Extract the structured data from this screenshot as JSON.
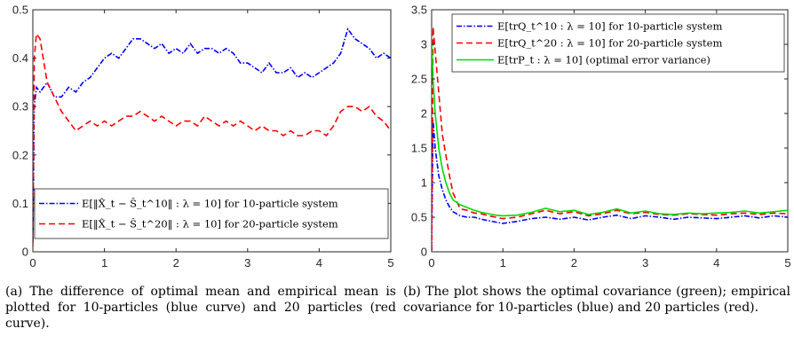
{
  "figure": {
    "caption_a": "(a) The difference of optimal mean and empirical mean is plotted for 10-particles (blue curve) and 20 particles (red curve).",
    "caption_b": "(b) The plot shows the optimal covariance (green); empirical covariance for 10-particles (blue) and 20 particles (red)."
  },
  "chart_data": [
    {
      "type": "line",
      "title": "",
      "xlabel": "",
      "ylabel": "",
      "xlim": [
        0,
        5
      ],
      "ylim": [
        0,
        0.5
      ],
      "xticks": [
        "0",
        "1",
        "2",
        "3",
        "4",
        "5"
      ],
      "yticks": [
        "0",
        "0.1",
        "0.2",
        "0.3",
        "0.4",
        "0.5"
      ],
      "grid": false,
      "legend_position": "bottom",
      "series": [
        {
          "name": "E[‖X̂_t − Ŝ_t^10‖ : λ = 10] for 10-particle system",
          "color": "#0000ff",
          "style": "dash-dot",
          "x": [
            0,
            0.02,
            0.05,
            0.1,
            0.2,
            0.3,
            0.4,
            0.5,
            0.6,
            0.7,
            0.8,
            0.9,
            1.0,
            1.1,
            1.2,
            1.3,
            1.4,
            1.5,
            1.6,
            1.7,
            1.8,
            1.9,
            2.0,
            2.1,
            2.2,
            2.3,
            2.4,
            2.5,
            2.6,
            2.7,
            2.8,
            2.9,
            3.0,
            3.1,
            3.2,
            3.3,
            3.4,
            3.5,
            3.6,
            3.7,
            3.8,
            3.9,
            4.0,
            4.1,
            4.2,
            4.3,
            4.4,
            4.5,
            4.6,
            4.7,
            4.8,
            4.9,
            5.0
          ],
          "y": [
            0.02,
            0.3,
            0.34,
            0.33,
            0.35,
            0.32,
            0.32,
            0.34,
            0.33,
            0.35,
            0.36,
            0.38,
            0.4,
            0.41,
            0.4,
            0.42,
            0.44,
            0.44,
            0.43,
            0.42,
            0.43,
            0.41,
            0.42,
            0.41,
            0.43,
            0.41,
            0.42,
            0.42,
            0.41,
            0.42,
            0.41,
            0.39,
            0.39,
            0.38,
            0.37,
            0.39,
            0.37,
            0.37,
            0.38,
            0.36,
            0.37,
            0.36,
            0.37,
            0.38,
            0.39,
            0.41,
            0.46,
            0.44,
            0.43,
            0.42,
            0.4,
            0.41,
            0.4
          ]
        },
        {
          "name": "E[‖X̂_t − Ŝ_t^20‖ : λ = 10] for 20-particle system",
          "color": "#ff0000",
          "style": "dashed",
          "x": [
            0,
            0.02,
            0.05,
            0.1,
            0.2,
            0.3,
            0.4,
            0.5,
            0.6,
            0.7,
            0.8,
            0.9,
            1.0,
            1.1,
            1.2,
            1.3,
            1.4,
            1.5,
            1.6,
            1.7,
            1.8,
            1.9,
            2.0,
            2.1,
            2.2,
            2.3,
            2.4,
            2.5,
            2.6,
            2.7,
            2.8,
            2.9,
            3.0,
            3.1,
            3.2,
            3.3,
            3.4,
            3.5,
            3.6,
            3.7,
            3.8,
            3.9,
            4.0,
            4.1,
            4.2,
            4.3,
            4.4,
            4.5,
            4.6,
            4.7,
            4.8,
            4.9,
            5.0
          ],
          "y": [
            0.01,
            0.4,
            0.45,
            0.44,
            0.35,
            0.32,
            0.29,
            0.27,
            0.25,
            0.26,
            0.27,
            0.26,
            0.27,
            0.26,
            0.27,
            0.28,
            0.28,
            0.29,
            0.28,
            0.27,
            0.28,
            0.27,
            0.26,
            0.27,
            0.27,
            0.26,
            0.28,
            0.27,
            0.26,
            0.27,
            0.26,
            0.27,
            0.26,
            0.25,
            0.26,
            0.25,
            0.25,
            0.24,
            0.25,
            0.24,
            0.24,
            0.25,
            0.25,
            0.24,
            0.26,
            0.29,
            0.3,
            0.3,
            0.29,
            0.3,
            0.28,
            0.27,
            0.25
          ]
        }
      ]
    },
    {
      "type": "line",
      "title": "",
      "xlabel": "",
      "ylabel": "",
      "xlim": [
        0,
        5
      ],
      "ylim": [
        0,
        3.5
      ],
      "xticks": [
        "0",
        "1",
        "2",
        "3",
        "4",
        "5"
      ],
      "yticks": [
        "0",
        "0.5",
        "1",
        "1.5",
        "2",
        "2.5",
        "3",
        "3.5"
      ],
      "grid": false,
      "legend_position": "top-right",
      "series": [
        {
          "name": "E[trQ_t^10 : λ = 10] for 10-particle system",
          "color": "#0000ff",
          "style": "dash-dot",
          "x": [
            0,
            0.02,
            0.05,
            0.1,
            0.15,
            0.2,
            0.25,
            0.3,
            0.4,
            0.5,
            0.6,
            0.7,
            0.8,
            0.9,
            1.0,
            1.2,
            1.4,
            1.6,
            1.8,
            2.0,
            2.2,
            2.4,
            2.6,
            2.8,
            3.0,
            3.2,
            3.4,
            3.6,
            3.8,
            4.0,
            4.2,
            4.4,
            4.6,
            4.8,
            5.0
          ],
          "y": [
            0.02,
            1.9,
            1.5,
            1.1,
            0.9,
            0.75,
            0.65,
            0.58,
            0.52,
            0.5,
            0.5,
            0.47,
            0.45,
            0.43,
            0.41,
            0.44,
            0.48,
            0.5,
            0.47,
            0.5,
            0.46,
            0.5,
            0.53,
            0.48,
            0.52,
            0.5,
            0.47,
            0.5,
            0.49,
            0.48,
            0.5,
            0.52,
            0.49,
            0.52,
            0.5
          ]
        },
        {
          "name": "E[trQ_t^20 : λ = 10] for 20-particle system",
          "color": "#ff0000",
          "style": "dashed",
          "x": [
            0,
            0.02,
            0.05,
            0.1,
            0.15,
            0.2,
            0.25,
            0.3,
            0.4,
            0.5,
            0.6,
            0.7,
            0.8,
            0.9,
            1.0,
            1.2,
            1.4,
            1.6,
            1.8,
            2.0,
            2.2,
            2.4,
            2.6,
            2.8,
            3.0,
            3.2,
            3.4,
            3.6,
            3.8,
            4.0,
            4.2,
            4.4,
            4.6,
            4.8,
            5.0
          ],
          "y": [
            0.02,
            3.25,
            2.9,
            2.3,
            1.7,
            1.4,
            1.1,
            0.85,
            0.62,
            0.6,
            0.56,
            0.55,
            0.52,
            0.5,
            0.48,
            0.5,
            0.55,
            0.6,
            0.55,
            0.58,
            0.52,
            0.55,
            0.6,
            0.55,
            0.57,
            0.54,
            0.53,
            0.55,
            0.54,
            0.53,
            0.55,
            0.56,
            0.54,
            0.56,
            0.55
          ]
        },
        {
          "name": "E[trP_t : λ = 10] (optimal error variance)",
          "color": "#00dd00",
          "style": "solid",
          "x": [
            0,
            0.02,
            0.05,
            0.1,
            0.15,
            0.2,
            0.25,
            0.3,
            0.4,
            0.5,
            0.6,
            0.7,
            0.8,
            0.9,
            1.0,
            1.2,
            1.4,
            1.6,
            1.8,
            2.0,
            2.2,
            2.4,
            2.6,
            2.8,
            3.0,
            3.2,
            3.4,
            3.6,
            3.8,
            4.0,
            4.2,
            4.4,
            4.6,
            4.8,
            5.0
          ],
          "y": [
            3.0,
            2.5,
            2.0,
            1.5,
            1.2,
            1.0,
            0.85,
            0.75,
            0.68,
            0.64,
            0.6,
            0.57,
            0.55,
            0.53,
            0.52,
            0.53,
            0.57,
            0.63,
            0.58,
            0.6,
            0.54,
            0.57,
            0.62,
            0.56,
            0.59,
            0.55,
            0.54,
            0.56,
            0.55,
            0.56,
            0.57,
            0.59,
            0.56,
            0.58,
            0.6
          ]
        }
      ]
    }
  ]
}
